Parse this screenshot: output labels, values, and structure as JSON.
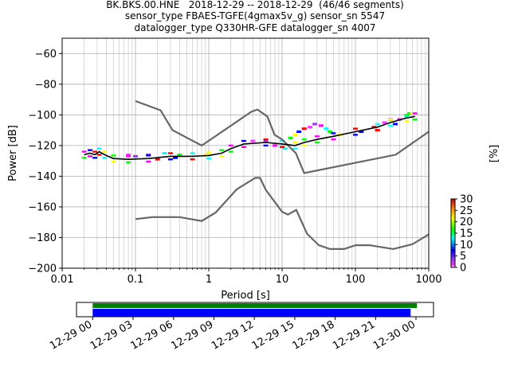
{
  "chart_data": {
    "type": "heatmap",
    "title_lines": [
      "BK.BKS.00.HNE   2018-12-29 -- 2018-12-29  (46/46 segments)",
      "sensor_type FBAES-TGFE(4gmax5v_g) sensor_sn 5547",
      "datalogger_type Q330HR-GFE datalogger_sn 4007"
    ],
    "xlabel": "Period [s]",
    "ylabel": "Power [dB]",
    "colorbar_label": "[%]",
    "x_scale": "log",
    "xlim": [
      0.01,
      1000
    ],
    "ylim": [
      -200,
      -50
    ],
    "x_ticks": [
      0.01,
      0.1,
      1,
      10,
      100,
      1000
    ],
    "x_tick_labels": [
      "0.01",
      "0.1",
      "1",
      "10",
      "100",
      "1000"
    ],
    "y_ticks": [
      -200,
      -180,
      -160,
      -140,
      -120,
      -100,
      -80,
      -60
    ],
    "y_tick_labels": [
      "−200",
      "−180",
      "−160",
      "−140",
      "−120",
      "−100",
      "−80",
      "−60"
    ],
    "colorbar_ticks": [
      0,
      5,
      10,
      15,
      20,
      25,
      30
    ],
    "colorbar_range": [
      0,
      30
    ],
    "grid": true,
    "nhnm": [
      [
        0.1,
        -91
      ],
      [
        0.22,
        -97
      ],
      [
        0.32,
        -110
      ],
      [
        0.8,
        -120
      ],
      [
        3.8,
        -98
      ],
      [
        4.6,
        -96.5
      ],
      [
        6.3,
        -101
      ],
      [
        7.9,
        -113
      ],
      [
        10,
        -116
      ],
      [
        15.4,
        -125
      ],
      [
        20,
        -138
      ],
      [
        354.8,
        -126
      ],
      [
        1000,
        -111
      ]
    ],
    "nlnm": [
      [
        0.1,
        -168
      ],
      [
        0.17,
        -166.7
      ],
      [
        0.4,
        -166.7
      ],
      [
        0.8,
        -169.2
      ],
      [
        1.24,
        -163.7
      ],
      [
        2.4,
        -148.6
      ],
      [
        4.3,
        -141.1
      ],
      [
        5,
        -141.1
      ],
      [
        6,
        -149
      ],
      [
        10,
        -163.2
      ],
      [
        12,
        -165
      ],
      [
        15.6,
        -162
      ],
      [
        21.9,
        -177.5
      ],
      [
        31.6,
        -185
      ],
      [
        45,
        -187.5
      ],
      [
        70,
        -187.5
      ],
      [
        101,
        -185
      ],
      [
        154,
        -185
      ],
      [
        328,
        -187.5
      ],
      [
        600,
        -184.4
      ],
      [
        1000,
        -178
      ]
    ],
    "mode_line": [
      [
        0.02,
        -126
      ],
      [
        0.024,
        -125
      ],
      [
        0.028,
        -126
      ],
      [
        0.032,
        -124
      ],
      [
        0.038,
        -126
      ],
      [
        0.05,
        -128.5
      ],
      [
        0.08,
        -129
      ],
      [
        0.15,
        -128.5
      ],
      [
        0.3,
        -127
      ],
      [
        0.6,
        -127
      ],
      [
        1,
        -126.5
      ],
      [
        1.5,
        -125
      ],
      [
        2,
        -122
      ],
      [
        3,
        -119
      ],
      [
        6,
        -118
      ],
      [
        10,
        -119
      ],
      [
        15,
        -120
      ],
      [
        20,
        -118
      ],
      [
        30,
        -116
      ],
      [
        50,
        -114
      ],
      [
        100,
        -111
      ],
      [
        200,
        -108
      ],
      [
        300,
        -105
      ],
      [
        500,
        -102
      ],
      [
        650,
        -101
      ]
    ],
    "spread_points": [
      [
        0.08,
        -126
      ],
      [
        0.1,
        -127
      ],
      [
        0.15,
        -126
      ],
      [
        0.25,
        -125
      ],
      [
        0.4,
        -126
      ],
      [
        0.9,
        -126
      ],
      [
        0.35,
        -128
      ],
      [
        0.2,
        -129
      ],
      [
        4,
        -117
      ],
      [
        6,
        -117
      ],
      [
        8,
        -120
      ],
      [
        11,
        -122
      ],
      [
        13,
        -115
      ],
      [
        15,
        -113
      ],
      [
        17,
        -111
      ],
      [
        20,
        -109
      ],
      [
        24,
        -108
      ],
      [
        28,
        -106
      ],
      [
        34,
        -107
      ],
      [
        40,
        -109
      ],
      [
        45,
        -111
      ],
      [
        60,
        -113
      ],
      [
        120,
        -111
      ],
      [
        180,
        -108
      ],
      [
        250,
        -105
      ],
      [
        300,
        -103
      ],
      [
        400,
        -103
      ],
      [
        500,
        -101
      ],
      [
        550,
        -99
      ],
      [
        600,
        -99
      ],
      [
        350,
        -106
      ],
      [
        200,
        -110
      ]
    ],
    "availability": {
      "ticks": [
        "12-29 00",
        "12-29 03",
        "12-29 06",
        "12-29 09",
        "12-29 12",
        "12-29 15",
        "12-29 18",
        "12-29 21",
        "12-30 00"
      ],
      "range_hours": [
        -1.2,
        25.3
      ],
      "gaps": [],
      "data_coverage_hours": [
        0,
        23.6
      ],
      "psd_coverage_hours": [
        0,
        23.6
      ],
      "colors": {
        "data": "#008000",
        "psd": "#0000ff"
      }
    },
    "colors": {
      "model_lines": "#666666",
      "mode_line": "#000000"
    }
  }
}
